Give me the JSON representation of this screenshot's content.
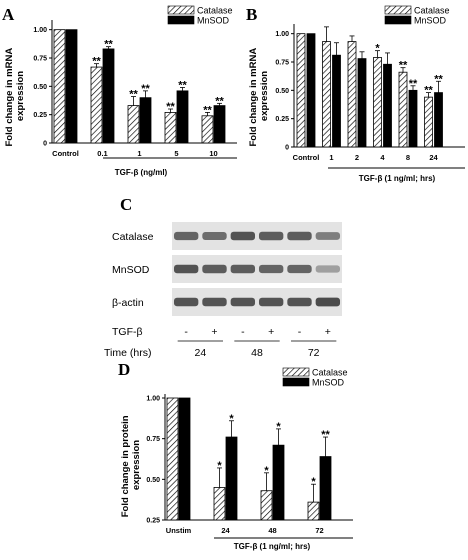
{
  "colors": {
    "black_bar": "#000000",
    "hatch_bar": "#ffffff",
    "blot_bg": "#e3e3e3",
    "band": "#3a3a3a"
  },
  "chart_data": [
    {
      "id": "A",
      "panel_label": "A",
      "type": "bar",
      "ylabel": "Fold change in mRNA expression",
      "xlabel": "TGF-β (ng/ml)",
      "categories": [
        "Control",
        "0.1",
        "1",
        "5",
        "10"
      ],
      "ylim": [
        0,
        1.05
      ],
      "yticks": [
        "0",
        "0.25",
        "0.50",
        "0.75",
        "1.00"
      ],
      "legend": "top-right",
      "series": [
        {
          "name": "Catalase",
          "pattern": "hatch",
          "values": [
            1.0,
            0.67,
            0.33,
            0.27,
            0.24
          ],
          "errors": [
            0,
            0.03,
            0.08,
            0.03,
            0.03
          ],
          "annotations": [
            "",
            "**",
            "**",
            "**",
            "**"
          ]
        },
        {
          "name": "MnSOD",
          "pattern": "solid",
          "values": [
            1.0,
            0.83,
            0.4,
            0.46,
            0.33
          ],
          "errors": [
            0,
            0.02,
            0.06,
            0.03,
            0.02
          ],
          "annotations": [
            "",
            "**",
            "**",
            "**",
            "**"
          ]
        }
      ]
    },
    {
      "id": "B",
      "panel_label": "B",
      "type": "bar",
      "ylabel": "Fold change in mRNA expression",
      "xlabel": "TGF-β (1 ng/ml; hrs)",
      "categories": [
        "Control",
        "1",
        "2",
        "4",
        "8",
        "24"
      ],
      "ylim": [
        0,
        1.05
      ],
      "yticks": [
        "0",
        "0.25",
        "0.50",
        "0.75",
        "1.00"
      ],
      "legend": "top-right",
      "series": [
        {
          "name": "Catalase",
          "pattern": "hatch",
          "values": [
            1.0,
            0.93,
            0.93,
            0.79,
            0.66,
            0.44
          ],
          "errors": [
            0,
            0.13,
            0.05,
            0.06,
            0.04,
            0.04
          ],
          "annotations": [
            "",
            "",
            "",
            "*",
            "**",
            "**"
          ]
        },
        {
          "name": "MnSOD",
          "pattern": "solid",
          "values": [
            1.0,
            0.81,
            0.78,
            0.73,
            0.5,
            0.48
          ],
          "errors": [
            0,
            0.11,
            0.06,
            0.1,
            0.04,
            0.1
          ],
          "annotations": [
            "",
            "",
            "",
            "",
            "**",
            "**"
          ]
        }
      ]
    },
    {
      "id": "D",
      "panel_label": "D",
      "type": "bar",
      "ylabel": "Fold change in protein expression",
      "xlabel": "TGF-β (1 ng/ml; hrs)",
      "categories": [
        "Unstim",
        "24",
        "48",
        "72"
      ],
      "ylim": [
        0.25,
        1.0
      ],
      "yticks": [
        "0.25",
        "0.50",
        "0.75",
        "1.00"
      ],
      "legend": "top-right",
      "series": [
        {
          "name": "Catalase",
          "pattern": "hatch",
          "values": [
            1.0,
            0.45,
            0.43,
            0.36
          ],
          "errors": [
            0,
            0.12,
            0.11,
            0.11
          ],
          "annotations": [
            "",
            "*",
            "*",
            "*"
          ]
        },
        {
          "name": "MnSOD",
          "pattern": "solid",
          "values": [
            1.0,
            0.76,
            0.71,
            0.64
          ],
          "errors": [
            0,
            0.1,
            0.1,
            0.12
          ],
          "annotations": [
            "",
            "*",
            "*",
            "**"
          ]
        }
      ]
    }
  ],
  "blot": {
    "panel_label": "C",
    "rows": [
      {
        "name": "Catalase",
        "intensities": [
          0.75,
          0.7,
          0.85,
          0.8,
          0.8,
          0.6
        ]
      },
      {
        "name": "MnSOD",
        "intensities": [
          0.85,
          0.8,
          0.8,
          0.75,
          0.75,
          0.4
        ]
      },
      {
        "name": "β-actin",
        "intensities": [
          0.85,
          0.85,
          0.85,
          0.85,
          0.85,
          0.9
        ]
      }
    ],
    "treatment_label": "TGF-β",
    "treatment_signs": [
      "-",
      "+",
      "-",
      "+",
      "-",
      "+"
    ],
    "time_label": "Time (hrs)",
    "times": [
      "24",
      "48",
      "72"
    ]
  }
}
